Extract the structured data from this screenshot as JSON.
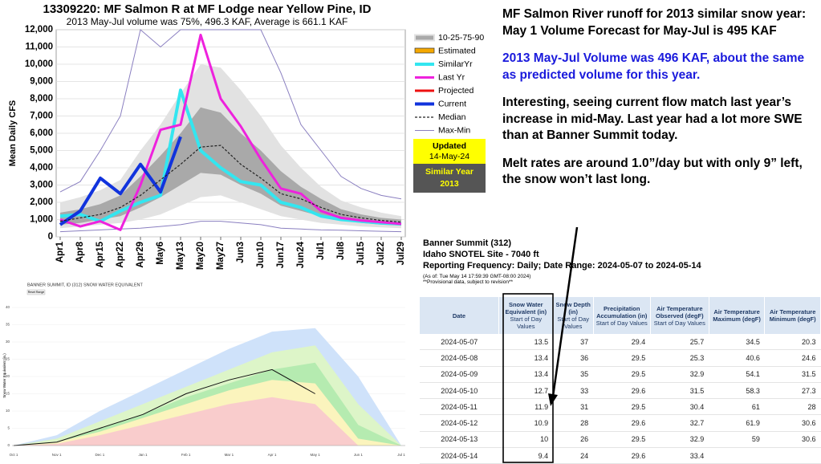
{
  "chart_data": [
    {
      "type": "line",
      "title": "13309220: MF Salmon R at MF Lodge near Yellow Pine, ID",
      "subtitle": "2013 May-Jul volume was 75%, 496.3 KAF, Average is 661.1 KAF",
      "y_label": "Mean Daily CFS",
      "categories": [
        "Apr1",
        "Apr8",
        "Apr15",
        "Apr22",
        "Apr29",
        "May6",
        "May13",
        "May20",
        "May27",
        "Jun3",
        "Jun10",
        "Jun17",
        "Jun24",
        "Jul1",
        "Jul8",
        "Jul15",
        "Jul22",
        "Jul29"
      ],
      "ylim": [
        0,
        12000
      ],
      "yticks": [
        0,
        {
          "value": 1000,
          "label": "1,000"
        },
        {
          "value": 2000,
          "label": "2,000"
        },
        {
          "value": 3000,
          "label": "3,000"
        },
        {
          "value": 4000,
          "label": "4,000"
        },
        {
          "value": 5000,
          "label": "5,000"
        },
        {
          "value": 6000,
          "label": "6,000"
        },
        {
          "value": 7000,
          "label": "7,000"
        },
        {
          "value": 8000,
          "label": "8,000"
        },
        {
          "value": 9000,
          "label": "9,000"
        },
        {
          "value": 10000,
          "label": "10,000"
        },
        {
          "value": 11000,
          "label": "11,000"
        },
        {
          "value": 12000,
          "label": "12,000"
        }
      ],
      "grid": true,
      "bands": {
        "name": "10-25-75-90",
        "outer_color": "#e2e2e2",
        "inner_color": "#a9a9a9",
        "p10": [
          500,
          600,
          700,
          800,
          1000,
          1300,
          1800,
          2300,
          2400,
          2000,
          1600,
          1200,
          1000,
          800,
          700,
          600,
          550,
          500
        ],
        "p25": [
          700,
          800,
          1000,
          1200,
          1700,
          2300,
          3000,
          3700,
          3600,
          3000,
          2500,
          1800,
          1500,
          1200,
          950,
          800,
          700,
          650
        ],
        "p75": [
          1400,
          1600,
          1900,
          2400,
          3500,
          4700,
          6000,
          7500,
          7200,
          6000,
          5000,
          3800,
          2900,
          2200,
          1600,
          1300,
          1100,
          1000
        ],
        "p90": [
          2000,
          2300,
          2700,
          3300,
          5000,
          6500,
          8300,
          10000,
          9800,
          8500,
          7000,
          5300,
          4000,
          2900,
          2100,
          1700,
          1400,
          1200
        ]
      },
      "legend_only": [
        {
          "name": "Estimated",
          "color": "#f5a800"
        }
      ],
      "series": [
        {
          "name": "SimilarYr",
          "color": "#33e6f0",
          "width": 4,
          "values": [
            1200,
            1300,
            900,
            1500,
            2000,
            2400,
            8500,
            5000,
            4000,
            3200,
            3000,
            2000,
            1700,
            1200,
            1000,
            900,
            800,
            750
          ]
        },
        {
          "name": "Last Yr",
          "color": "#ee22dd",
          "width": 3,
          "values": [
            1000,
            600,
            900,
            400,
            3000,
            6200,
            6500,
            11700,
            8000,
            6400,
            4500,
            2800,
            2500,
            1500,
            1100,
            950,
            850,
            750
          ]
        },
        {
          "name": "Projected",
          "color": "#ee1111",
          "width": 3,
          "values": [
            null,
            null,
            null,
            null,
            null,
            null,
            null,
            null,
            null,
            null,
            null,
            null,
            null,
            null,
            null,
            null,
            null,
            null
          ]
        },
        {
          "name": "Current",
          "color": "#1133dd",
          "width": 4,
          "values": [
            700,
            1500,
            3400,
            2500,
            4200,
            2600,
            5800,
            null,
            null,
            null,
            null,
            null,
            null,
            null,
            null,
            null,
            null,
            null
          ]
        },
        {
          "name": "Median",
          "color": "#222222",
          "width": 1.2,
          "dash": true,
          "values": [
            900,
            1100,
            1300,
            1700,
            2400,
            3300,
            4200,
            5200,
            5300,
            4200,
            3400,
            2500,
            2200,
            1700,
            1300,
            1100,
            950,
            850
          ]
        }
      ],
      "maxmin": {
        "name": "Max-Min",
        "color": "#8a7fc0",
        "max": [
          2600,
          3200,
          5000,
          7000,
          12000,
          11000,
          12000,
          12000,
          12000,
          12000,
          12000,
          9500,
          6500,
          5000,
          3500,
          2800,
          2400,
          2200
        ],
        "min": [
          300,
          350,
          400,
          450,
          500,
          600,
          700,
          900,
          900,
          800,
          700,
          500,
          450,
          400,
          380,
          350,
          320,
          300
        ]
      },
      "updated_label": "Updated",
      "updated_date": "14-May-24",
      "similar_label": "Similar Year",
      "similar_year": "2013"
    },
    {
      "type": "area",
      "title": "BANNER SUMMIT, ID (312) SNOW WATER EQUIVALENT",
      "button": "Reset Range",
      "y_label": "Snow Water Equivalent (in.)",
      "categories": [
        "Oct 1",
        "Nov 1",
        "Dec 1",
        "Jan 1",
        "Feb 1",
        "Mar 1",
        "Apr 1",
        "May 1",
        "Jun 1",
        "Jul 1"
      ],
      "ylim": [
        0,
        40
      ],
      "yticks": [
        0,
        5,
        10,
        15,
        20,
        25,
        30,
        35,
        40
      ],
      "areas": [
        {
          "color": "#cfe2fa",
          "values": [
            0,
            3,
            10,
            16,
            22,
            28,
            33,
            34,
            20,
            0
          ]
        },
        {
          "color": "#ddf5c8",
          "values": [
            0,
            2,
            7,
            12,
            17,
            22,
            27,
            29,
            12,
            0
          ]
        },
        {
          "color": "#b5ebb0",
          "values": [
            0,
            1,
            5,
            9,
            14,
            18,
            22,
            24,
            6,
            0
          ]
        },
        {
          "color": "#fbf4bd",
          "values": [
            0,
            1,
            4,
            8,
            12,
            16,
            19,
            18,
            2,
            0
          ]
        },
        {
          "color": "#f9cccc",
          "values": [
            0,
            0.5,
            3,
            6,
            9,
            12,
            14,
            12,
            0,
            0
          ]
        }
      ],
      "series": [
        {
          "color": "#111111",
          "values": [
            0,
            1,
            5,
            9,
            15,
            19,
            22,
            15,
            null,
            null
          ]
        }
      ]
    }
  ],
  "notes": [
    {
      "text": "MF Salmon River runoff for 2013 similar snow year:",
      "color": "#000000"
    },
    {
      "text": "May 1 Volume Forecast for May-Jul is 495 KAF",
      "color": "#000000"
    },
    {
      "text": "2013 May-Jul Volume was 496 KAF, about the same as predicted volume for this year.",
      "color": "#1a1adc"
    },
    {
      "text": "Interesting, seeing current flow match last year’s increase in mid-May. Last year had a lot more SWE than at Banner Summit today.",
      "color": "#000000"
    },
    {
      "text": "Melt rates are around 1.0”/day but with only 9” left, the snow won’t last long.",
      "color": "#000000"
    }
  ],
  "snotel": {
    "site": "Banner Summit (312)",
    "network": "Idaho SNOTEL Site - 7040 ft",
    "reporting": "Reporting Frequency: Daily; Date Range: 2024-05-07 to 2024-05-14",
    "as_of": "(As of: Tue May 14 17:59:39 GMT-08:00 2024)",
    "provisional": "**Provisional data, subject to revision**",
    "columns": [
      {
        "name": "Date"
      },
      {
        "name": "Snow Water Equivalent (in)",
        "sub": "Start of Day Values"
      },
      {
        "name": "Snow Depth (in)",
        "sub": "Start of Day Values"
      },
      {
        "name": "Precipitation Accumulation (in)",
        "sub": "Start of Day Values"
      },
      {
        "name": "Air Temperature Observed (degF)",
        "sub": "Start of Day Values"
      },
      {
        "name": "Air Temperature Maximum (degF)"
      },
      {
        "name": "Air Temperature Minimum (degF)"
      }
    ],
    "rows": [
      [
        "2024-05-07",
        13.5,
        37,
        29.4,
        25.7,
        34.5,
        20.3
      ],
      [
        "2024-05-08",
        13.4,
        36,
        29.5,
        25.3,
        40.6,
        24.6
      ],
      [
        "2024-05-09",
        13.4,
        35,
        29.5,
        32.9,
        54.1,
        31.5
      ],
      [
        "2024-05-10",
        12.7,
        33,
        29.6,
        31.5,
        58.3,
        27.3
      ],
      [
        "2024-05-11",
        11.9,
        31,
        29.5,
        30.4,
        61.0,
        28.0
      ],
      [
        "2024-05-12",
        10.9,
        28,
        29.6,
        32.7,
        61.9,
        30.6
      ],
      [
        "2024-05-13",
        10.0,
        26,
        29.5,
        32.9,
        59.0,
        30.6
      ],
      [
        "2024-05-14",
        9.4,
        24,
        29.6,
        33.4,
        null,
        null
      ]
    ]
  }
}
